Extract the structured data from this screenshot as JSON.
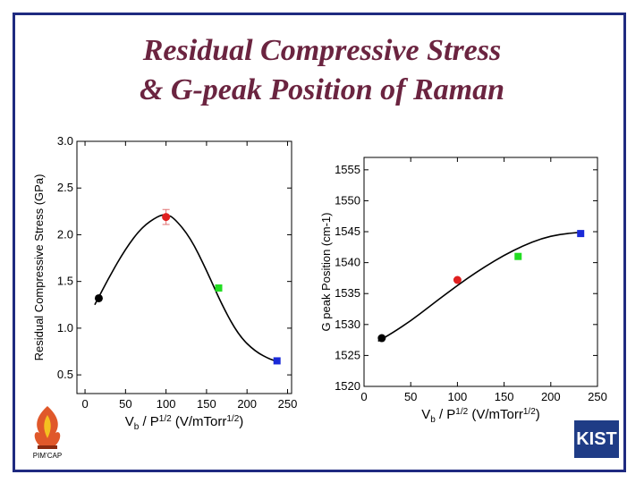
{
  "slide": {
    "title_line1": "Residual Compressive Stress",
    "title_line2": "& G-peak Position of Raman",
    "left_logo_text": "PIM’CAP",
    "right_logo_text": "KIST"
  },
  "chart_data": [
    {
      "type": "scatter",
      "ylabel": "Residual Compressive Stress (GPa)",
      "xlabel_main": "V",
      "xlabel_sub": "b",
      "xlabel_mid": " / P",
      "xlabel_sup": "1/2",
      "xlabel_unit": " (V/mTorr",
      "xlabel_unit_sup": "1/2",
      "xlabel_end": ")",
      "xlim": [
        -10,
        255
      ],
      "ylim": [
        0.3,
        3.0
      ],
      "xticks": [
        0,
        50,
        100,
        150,
        200,
        250
      ],
      "xtick_labels": [
        "0",
        "50",
        "100",
        "150",
        "200",
        "250"
      ],
      "yticks": [
        0.5,
        1.0,
        1.5,
        2.0,
        2.5,
        3.0
      ],
      "ytick_labels": [
        "0.5",
        "1.0",
        "1.5",
        "2.0",
        "2.5",
        "3.0"
      ],
      "points": [
        {
          "x": 17,
          "y": 1.32,
          "color": "#000000",
          "marker": "circle"
        },
        {
          "x": 100,
          "y": 2.19,
          "yerr": 0.08,
          "color": "#e02020",
          "marker": "circle"
        },
        {
          "x": 165,
          "y": 1.43,
          "color": "#22dd22",
          "marker": "square"
        },
        {
          "x": 237,
          "y": 0.65,
          "color": "#1a2ad8",
          "marker": "square"
        }
      ],
      "fit_curve": {
        "x": [
          12,
          30,
          50,
          70,
          90,
          100,
          110,
          130,
          150,
          170,
          190,
          210,
          230,
          237
        ],
        "y": [
          1.25,
          1.55,
          1.85,
          2.08,
          2.2,
          2.22,
          2.18,
          1.97,
          1.62,
          1.23,
          0.92,
          0.75,
          0.66,
          0.65
        ]
      }
    },
    {
      "type": "scatter",
      "ylabel": "G peak Position (cm-1)",
      "xlabel_main": "V",
      "xlabel_sub": "b",
      "xlabel_mid": " / P",
      "xlabel_sup": "1/2",
      "xlabel_unit": " (V/mTorr",
      "xlabel_unit_sup": "1/2",
      "xlabel_end": ")",
      "xlim": [
        0,
        250
      ],
      "ylim": [
        1520,
        1557
      ],
      "xticks": [
        0,
        50,
        100,
        150,
        200,
        250
      ],
      "xtick_labels": [
        "0",
        "50",
        "100",
        "150",
        "200",
        "250"
      ],
      "yticks": [
        1520,
        1525,
        1530,
        1535,
        1540,
        1545,
        1550,
        1555
      ],
      "ytick_labels": [
        "1520",
        "1525",
        "1530",
        "1535",
        "1540",
        "1545",
        "1550",
        "1555"
      ],
      "points": [
        {
          "x": 19,
          "y": 1527.8,
          "color": "#000000",
          "marker": "circle"
        },
        {
          "x": 100,
          "y": 1537.2,
          "color": "#e02020",
          "marker": "circle"
        },
        {
          "x": 165,
          "y": 1541.0,
          "color": "#22dd22",
          "marker": "square"
        },
        {
          "x": 232,
          "y": 1544.7,
          "color": "#1a2ad8",
          "marker": "square"
        }
      ],
      "fit_curve": {
        "x": [
          15,
          30,
          50,
          70,
          90,
          110,
          130,
          150,
          170,
          190,
          210,
          232
        ],
        "y": [
          1527.3,
          1528.6,
          1530.6,
          1532.9,
          1535.2,
          1537.4,
          1539.4,
          1541.2,
          1542.7,
          1543.9,
          1544.6,
          1544.9
        ]
      }
    }
  ]
}
